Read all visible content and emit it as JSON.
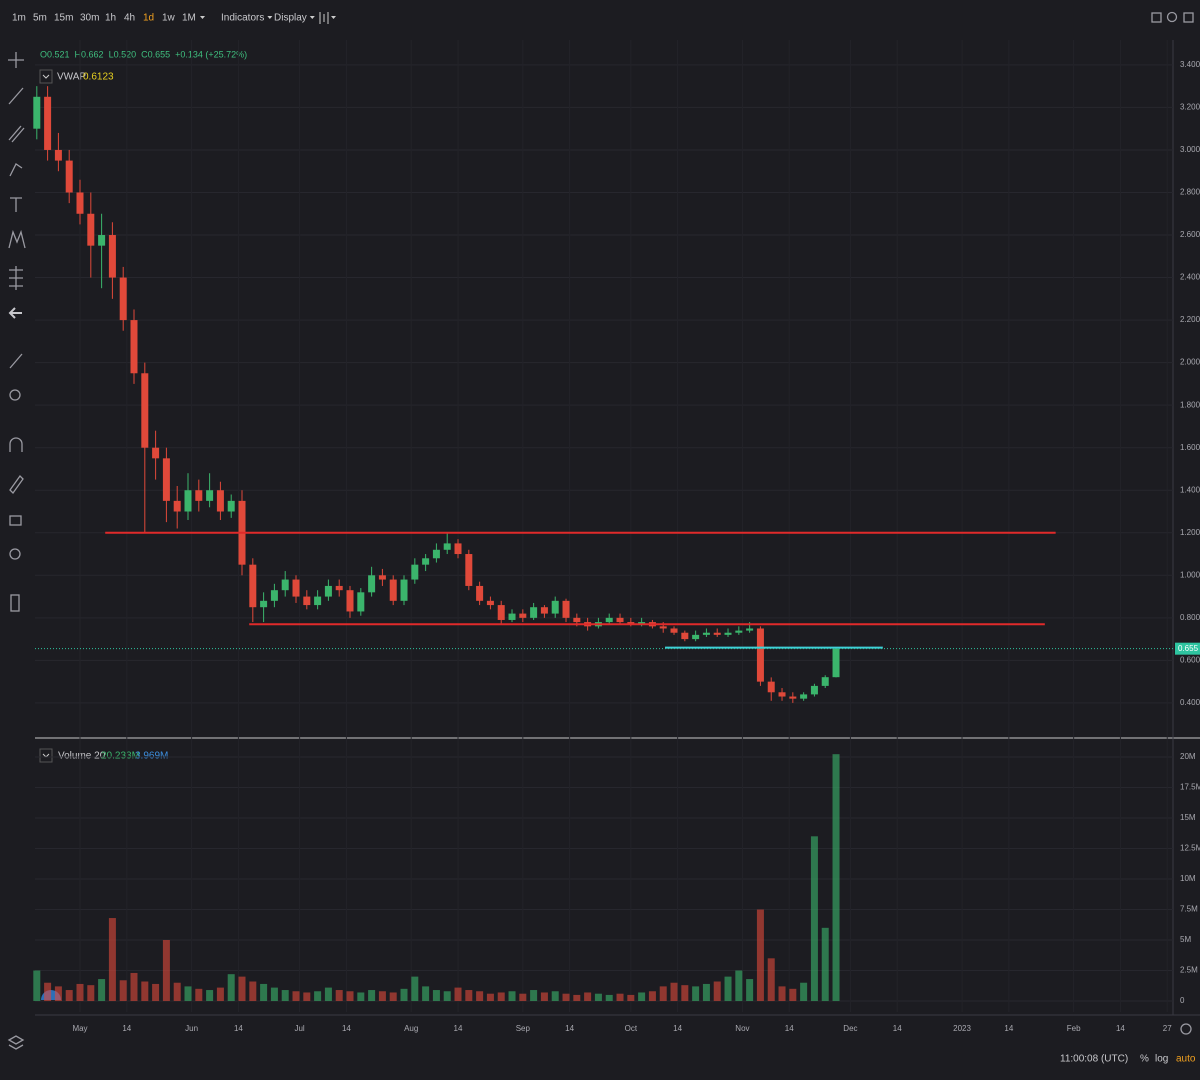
{
  "toolbar": {
    "intervals": [
      "1m",
      "5m",
      "15m",
      "30m",
      "1h",
      "4h",
      "1d",
      "1w",
      "1M"
    ],
    "active_interval": 6,
    "menus": [
      "Indicators",
      "Display"
    ]
  },
  "legend": {
    "ohlc": [
      "O0.521",
      "H0.662",
      "L0.520",
      "C0.655",
      "+0.134 (+25.72%)"
    ],
    "indicator": "VWAP",
    "indicator_value": "0.6123"
  },
  "volume_legend": {
    "name": "Volume 20",
    "value": "20.233M",
    "average": "3.969M"
  },
  "status": {
    "time": "11:00:08 (UTC)",
    "options": [
      "%",
      "log",
      "auto"
    ]
  },
  "chart_data": [
    {
      "type": "candlestick",
      "up_color": "#3bb56c",
      "down_color": "#e0493a",
      "grid": true,
      "x": [
        109,
        112,
        115,
        118,
        121,
        124,
        127,
        130,
        133,
        136,
        139,
        142,
        145,
        148,
        151,
        154,
        157,
        160,
        163,
        166,
        169,
        172,
        175,
        178,
        181,
        184,
        187,
        190,
        193,
        196,
        199,
        202,
        205,
        208,
        211,
        214,
        217,
        220,
        223,
        226,
        229,
        232,
        235,
        238,
        241,
        244,
        247,
        250,
        253,
        256,
        259,
        262,
        265,
        268,
        271,
        274,
        277,
        280,
        283,
        286,
        289,
        292,
        295,
        298,
        301,
        304,
        307,
        310,
        313,
        316,
        319,
        322,
        325,
        328,
        331
      ],
      "open": [
        3.1,
        3.25,
        3.0,
        2.95,
        2.8,
        2.7,
        2.55,
        2.6,
        2.4,
        2.2,
        1.95,
        1.6,
        1.55,
        1.35,
        1.3,
        1.4,
        1.35,
        1.4,
        1.3,
        1.35,
        1.05,
        0.85,
        0.88,
        0.93,
        0.98,
        0.9,
        0.86,
        0.9,
        0.95,
        0.93,
        0.83,
        0.92,
        1.0,
        0.98,
        0.88,
        0.98,
        1.05,
        1.08,
        1.12,
        1.15,
        1.1,
        0.95,
        0.88,
        0.86,
        0.79,
        0.82,
        0.8,
        0.85,
        0.82,
        0.88,
        0.8,
        0.78,
        0.76,
        0.78,
        0.8,
        0.78,
        0.77,
        0.78,
        0.76,
        0.75,
        0.73,
        0.7,
        0.72,
        0.73,
        0.72,
        0.73,
        0.74,
        0.75,
        0.5,
        0.45,
        0.43,
        0.42,
        0.44,
        0.48,
        0.521
      ],
      "high": [
        3.3,
        3.3,
        3.08,
        3.0,
        2.86,
        2.8,
        2.7,
        2.66,
        2.45,
        2.25,
        2.0,
        1.68,
        1.6,
        1.42,
        1.48,
        1.45,
        1.48,
        1.44,
        1.38,
        1.4,
        1.08,
        0.92,
        0.96,
        1.02,
        1.0,
        0.93,
        0.93,
        0.98,
        0.98,
        0.95,
        0.94,
        1.04,
        1.03,
        1.0,
        1.0,
        1.08,
        1.1,
        1.15,
        1.2,
        1.17,
        1.12,
        0.97,
        0.9,
        0.88,
        0.84,
        0.84,
        0.87,
        0.86,
        0.9,
        0.89,
        0.82,
        0.8,
        0.8,
        0.82,
        0.82,
        0.8,
        0.8,
        0.79,
        0.78,
        0.76,
        0.74,
        0.74,
        0.75,
        0.75,
        0.75,
        0.76,
        0.78,
        0.76,
        0.52,
        0.47,
        0.45,
        0.45,
        0.49,
        0.53,
        0.662
      ],
      "low": [
        3.05,
        2.95,
        2.9,
        2.75,
        2.65,
        2.4,
        2.35,
        2.3,
        2.15,
        1.9,
        1.2,
        1.45,
        1.25,
        1.22,
        1.26,
        1.3,
        1.32,
        1.26,
        1.27,
        1.0,
        0.78,
        0.78,
        0.85,
        0.9,
        0.87,
        0.84,
        0.84,
        0.88,
        0.9,
        0.8,
        0.81,
        0.9,
        0.95,
        0.86,
        0.86,
        0.96,
        1.02,
        1.06,
        1.1,
        1.08,
        0.93,
        0.86,
        0.84,
        0.77,
        0.78,
        0.78,
        0.79,
        0.8,
        0.8,
        0.78,
        0.76,
        0.74,
        0.75,
        0.77,
        0.77,
        0.76,
        0.76,
        0.75,
        0.73,
        0.72,
        0.69,
        0.69,
        0.71,
        0.71,
        0.71,
        0.72,
        0.73,
        0.48,
        0.41,
        0.41,
        0.4,
        0.41,
        0.43,
        0.47,
        0.52
      ],
      "close": [
        3.25,
        3.0,
        2.95,
        2.8,
        2.7,
        2.55,
        2.6,
        2.4,
        2.2,
        1.95,
        1.6,
        1.55,
        1.35,
        1.3,
        1.4,
        1.35,
        1.4,
        1.3,
        1.35,
        1.05,
        0.85,
        0.88,
        0.93,
        0.98,
        0.9,
        0.86,
        0.9,
        0.95,
        0.93,
        0.83,
        0.92,
        1.0,
        0.98,
        0.88,
        0.98,
        1.05,
        1.08,
        1.12,
        1.15,
        1.1,
        0.95,
        0.88,
        0.86,
        0.79,
        0.82,
        0.8,
        0.85,
        0.82,
        0.88,
        0.8,
        0.78,
        0.76,
        0.78,
        0.8,
        0.78,
        0.77,
        0.78,
        0.76,
        0.75,
        0.73,
        0.7,
        0.72,
        0.73,
        0.72,
        0.73,
        0.74,
        0.75,
        0.5,
        0.45,
        0.43,
        0.42,
        0.44,
        0.48,
        0.521,
        0.655
      ],
      "xlim": [
        108.5,
        424.6
      ],
      "xticks": [
        {
          "value": 121,
          "label": "May"
        },
        {
          "value": 134,
          "label": "14"
        },
        {
          "value": 152,
          "label": "Jun"
        },
        {
          "value": 165,
          "label": "14"
        },
        {
          "value": 182,
          "label": "Jul"
        },
        {
          "value": 195,
          "label": "14"
        },
        {
          "value": 213,
          "label": "Aug"
        },
        {
          "value": 226,
          "label": "14"
        },
        {
          "value": 244,
          "label": "Sep"
        },
        {
          "value": 257,
          "label": "14"
        },
        {
          "value": 274,
          "label": "Oct"
        },
        {
          "value": 287,
          "label": "14"
        },
        {
          "value": 305,
          "label": "Nov"
        },
        {
          "value": 318,
          "label": "14"
        },
        {
          "value": 335,
          "label": "Dec"
        },
        {
          "value": 348,
          "label": "14"
        },
        {
          "value": 366,
          "label": "2023"
        },
        {
          "value": 379,
          "label": "14"
        },
        {
          "value": 397,
          "label": "Feb"
        },
        {
          "value": 410,
          "label": "14"
        },
        {
          "value": 423,
          "label": "27"
        }
      ],
      "ylim": [
        0.235,
        3.517
      ],
      "yticks": [
        {
          "value": 0.4,
          "label": "0.400"
        },
        {
          "value": 0.6,
          "label": "0.600"
        },
        {
          "value": 0.8,
          "label": "0.800"
        },
        {
          "value": 1.0,
          "label": "1.000"
        },
        {
          "value": 1.2,
          "label": "1.200"
        },
        {
          "value": 1.4,
          "label": "1.400"
        },
        {
          "value": 1.6,
          "label": "1.600"
        },
        {
          "value": 1.8,
          "label": "1.800"
        },
        {
          "value": 2.0,
          "label": "2.000"
        },
        {
          "value": 2.2,
          "label": "2.200"
        },
        {
          "value": 2.4,
          "label": "2.400"
        },
        {
          "value": 2.6,
          "label": "2.600"
        },
        {
          "value": 2.8,
          "label": "2.800"
        },
        {
          "value": 3.0,
          "label": "3.000"
        },
        {
          "value": 3.2,
          "label": "3.200"
        },
        {
          "value": 3.4,
          "label": "3.400"
        }
      ],
      "last_price": {
        "value": 0.655,
        "label": "0.655",
        "color": "#2ec4a0"
      },
      "levels": [
        {
          "price": 1.2,
          "start": 128,
          "end": 392,
          "color": "#e02a2a"
        },
        {
          "price": 0.77,
          "start": 168,
          "end": 389,
          "color": "#e02a2a"
        },
        {
          "price": 0.66,
          "start": 283.5,
          "end": 344,
          "color": "#3fd0d8"
        }
      ]
    },
    {
      "type": "bar",
      "grid": true,
      "x": [
        109,
        112,
        115,
        118,
        121,
        124,
        127,
        130,
        133,
        136,
        139,
        142,
        145,
        148,
        151,
        154,
        157,
        160,
        163,
        166,
        169,
        172,
        175,
        178,
        181,
        184,
        187,
        190,
        193,
        196,
        199,
        202,
        205,
        208,
        211,
        214,
        217,
        220,
        223,
        226,
        229,
        232,
        235,
        238,
        241,
        244,
        247,
        250,
        253,
        256,
        259,
        262,
        265,
        268,
        271,
        274,
        277,
        280,
        283,
        286,
        289,
        292,
        295,
        298,
        301,
        304,
        307,
        310,
        313,
        316,
        319,
        322,
        325,
        328,
        331
      ],
      "values": [
        2500000,
        1500000,
        1200000,
        900000,
        1400000,
        1300000,
        1800000,
        6800000,
        1700000,
        2300000,
        1600000,
        1400000,
        5000000,
        1500000,
        1200000,
        1000000,
        900000,
        1100000,
        2200000,
        2000000,
        1600000,
        1400000,
        1100000,
        900000,
        800000,
        700000,
        800000,
        1100000,
        900000,
        800000,
        700000,
        900000,
        800000,
        700000,
        1000000,
        2000000,
        1200000,
        900000,
        800000,
        1100000,
        900000,
        800000,
        600000,
        700000,
        800000,
        600000,
        900000,
        700000,
        800000,
        600000,
        500000,
        700000,
        600000,
        500000,
        600000,
        500000,
        700000,
        800000,
        1200000,
        1500000,
        1300000,
        1200000,
        1400000,
        1600000,
        2000000,
        2500000,
        1800000,
        7500000,
        3500000,
        1200000,
        1000000,
        1500000,
        13500000,
        6000000,
        20233000
      ],
      "xlim": [
        108.5,
        424.6
      ],
      "ylim": [
        -900000,
        21230000
      ],
      "yticks": [
        {
          "value": 0,
          "label": "0"
        },
        {
          "value": 2500000,
          "label": "2.5M"
        },
        {
          "value": 5000000,
          "label": "5M"
        },
        {
          "value": 7500000,
          "label": "7.5M"
        },
        {
          "value": 10000000,
          "label": "10M"
        },
        {
          "value": 12500000,
          "label": "12.5M"
        },
        {
          "value": 15000000,
          "label": "15M"
        },
        {
          "value": 17500000,
          "label": "17.5M"
        },
        {
          "value": 20000000,
          "label": "20M"
        }
      ]
    }
  ]
}
